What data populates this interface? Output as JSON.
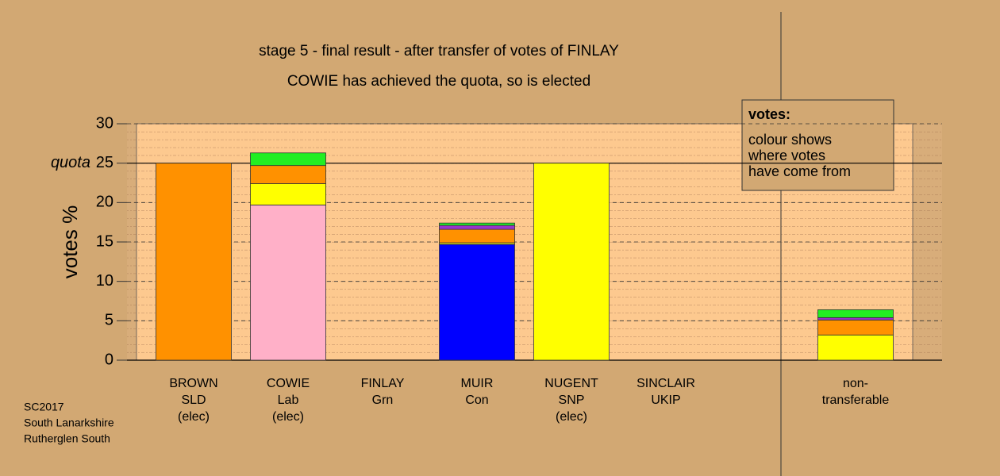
{
  "chart_data": {
    "type": "stacked_bar",
    "title": "stage 5 - final result - after transfer of votes of FINLAY",
    "subtitle": "COWIE has achieved the quota, so is elected",
    "y_label": "votes %",
    "categories": [
      [
        "BROWN",
        "SLD",
        "(elec)"
      ],
      [
        "COWIE",
        "Lab",
        "(elec)"
      ],
      [
        "FINLAY",
        "Grn"
      ],
      [
        "MUIR",
        "Con"
      ],
      [
        "NUGENT",
        "SNP",
        "(elec)"
      ],
      [
        "SINCLAIR",
        "UKIP"
      ],
      [
        "non-",
        "transferable"
      ]
    ],
    "series": [
      {
        "color": "#ffb0c8",
        "values": [
          0,
          19.7,
          0,
          0,
          0,
          0,
          0
        ]
      },
      {
        "color": "#0000ff",
        "values": [
          0,
          0,
          0,
          14.7,
          0,
          0,
          0
        ]
      },
      {
        "color": "#ffff00",
        "values": [
          0,
          2.7,
          0,
          0.2,
          25,
          0,
          3.2
        ]
      },
      {
        "color": "#ff9100",
        "values": [
          25,
          2.3,
          0,
          1.7,
          0,
          0,
          1.9
        ]
      },
      {
        "color": "#9933cc",
        "values": [
          0,
          0,
          0,
          0.5,
          0,
          0,
          0.3
        ]
      },
      {
        "color": "#22ee22",
        "values": [
          0,
          1.6,
          0,
          0.3,
          0,
          0,
          1.0
        ]
      }
    ],
    "ylim": [
      0,
      30
    ],
    "yticks": [
      0,
      5,
      10,
      15,
      20,
      25,
      30
    ],
    "grid": true,
    "quota": {
      "value": 25,
      "label": "quota"
    },
    "legend": {
      "title": "votes:",
      "lines": [
        "colour shows",
        "where votes",
        "have come from"
      ]
    },
    "footer": [
      "SC2017",
      "South Lanarkshire",
      "Rutherglen South"
    ]
  }
}
